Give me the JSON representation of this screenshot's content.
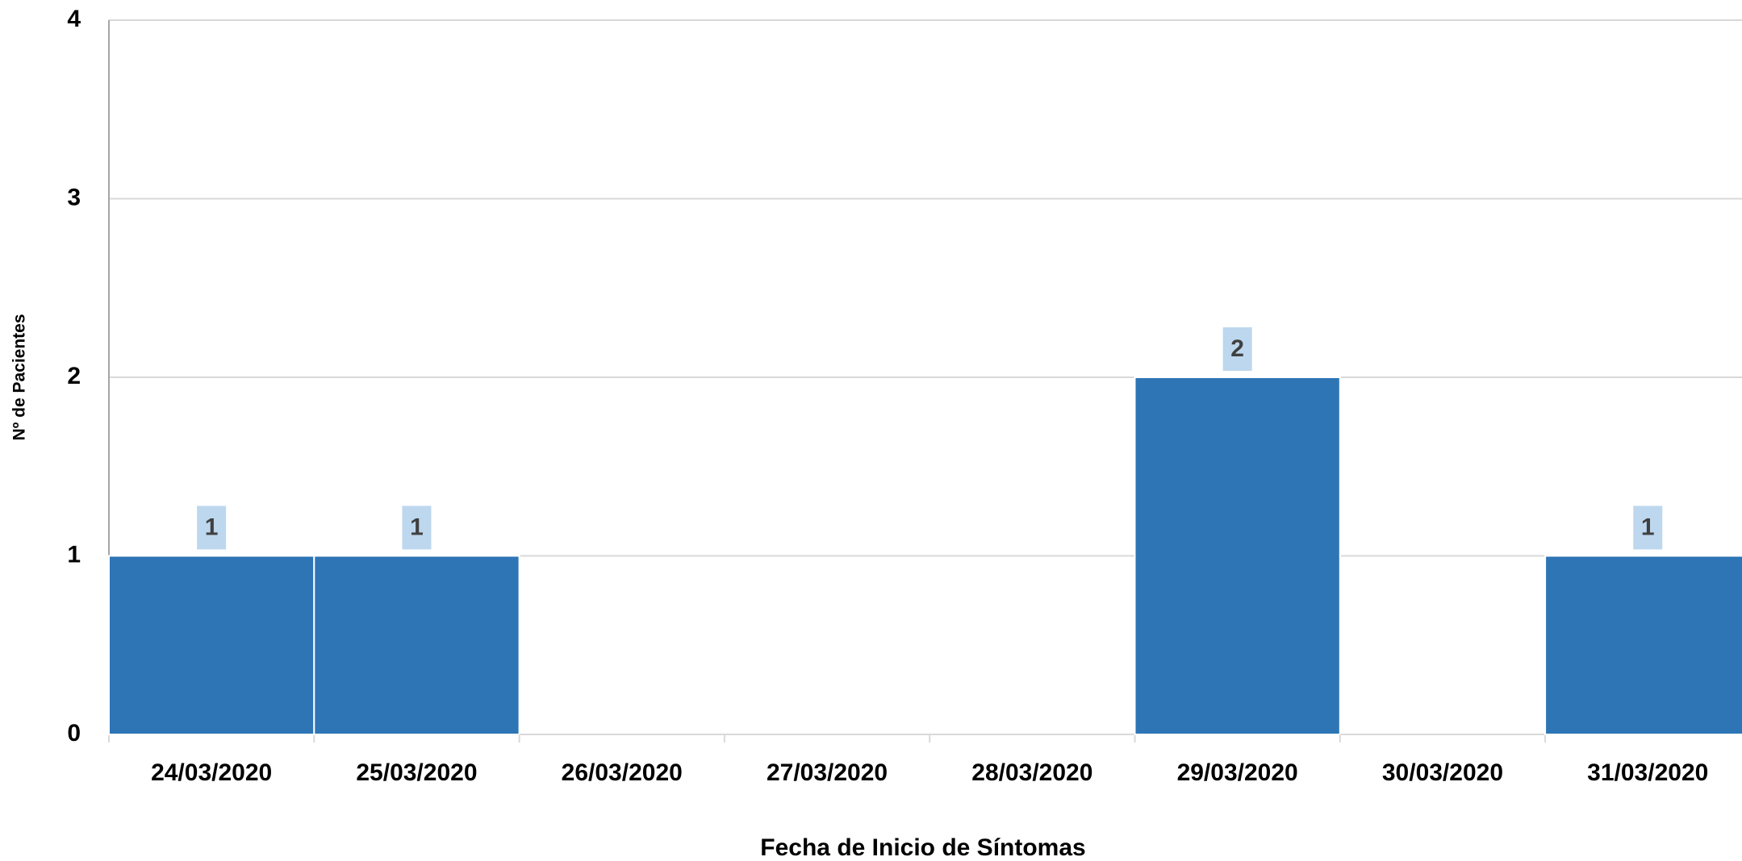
{
  "chart_data": {
    "type": "bar",
    "x_label": "Fecha de Inicio de Síntomas",
    "y_label": "Nº de Pacientes",
    "categories": [
      "24/03/2020",
      "25/03/2020",
      "26/03/2020",
      "27/03/2020",
      "28/03/2020",
      "29/03/2020",
      "30/03/2020",
      "31/03/2020"
    ],
    "values": [
      1,
      1,
      0,
      0,
      0,
      2,
      0,
      1
    ],
    "color": "#2e75b6",
    "ylim": [
      0,
      4
    ],
    "yticks": [
      0,
      1,
      2,
      3,
      4
    ],
    "grid": true
  }
}
